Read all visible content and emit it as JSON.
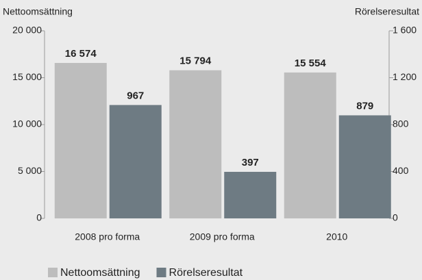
{
  "chart_data": {
    "type": "bar",
    "y_label": "Nettoomsättning",
    "y2_label": "Rörelseresultat",
    "categories": [
      "2008 pro forma",
      "2009 pro forma",
      "2010"
    ],
    "series": [
      {
        "name": "Nettoomsättning",
        "color": "#bdbdbd",
        "values": [
          16574,
          15794,
          15554
        ],
        "value_labels": [
          "16 574",
          "15 794",
          "15 554"
        ]
      },
      {
        "name": "Rörelseresultat",
        "color": "#6e7b83",
        "axis": "y2",
        "values": [
          967,
          397,
          879
        ]
      }
    ],
    "ylim": [
      0,
      20000
    ],
    "yticks": [
      0,
      {
        "value": 5000,
        "label": "5 000"
      },
      {
        "value": 10000,
        "label": "10 000"
      },
      {
        "value": 15000,
        "label": "15 000"
      },
      {
        "value": 20000,
        "label": "20 000"
      }
    ],
    "y2lim": [
      0,
      1600
    ],
    "y2ticks": [
      0,
      400,
      800,
      {
        "value": 1200,
        "label": "1 200"
      },
      {
        "value": 1600,
        "label": "1 600"
      }
    ],
    "legend": "bottom"
  }
}
